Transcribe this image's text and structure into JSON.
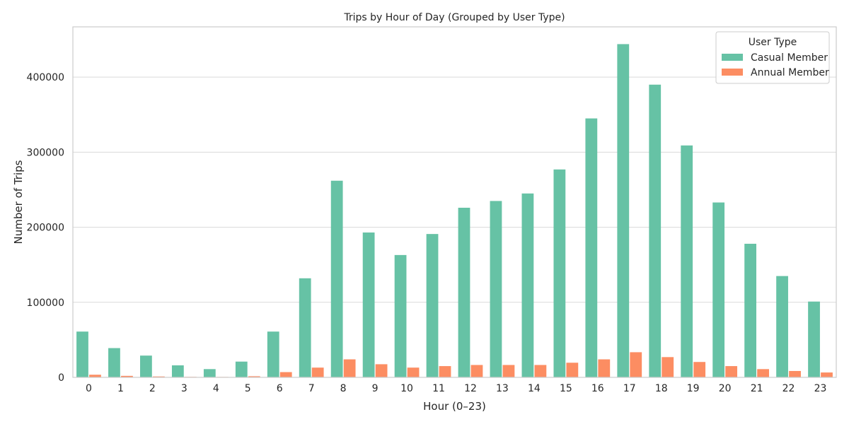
{
  "chart_data": {
    "type": "bar",
    "title": "Trips by Hour of Day (Grouped by User Type)",
    "xlabel": "Hour (0–23)",
    "ylabel": "Number of Trips",
    "categories": [
      "0",
      "1",
      "2",
      "3",
      "4",
      "5",
      "6",
      "7",
      "8",
      "9",
      "10",
      "11",
      "12",
      "13",
      "14",
      "15",
      "16",
      "17",
      "18",
      "19",
      "20",
      "21",
      "22",
      "23"
    ],
    "ylim": [
      0,
      467000
    ],
    "yticks": [
      0,
      100000,
      200000,
      300000,
      400000
    ],
    "grid": "horizontal",
    "legend": {
      "title": "User Type",
      "placement": "top-right"
    },
    "series": [
      {
        "name": "Casual Member",
        "color": "#66c2a5",
        "values": [
          61000,
          39000,
          29000,
          16000,
          11000,
          21000,
          61000,
          132000,
          262000,
          193000,
          163000,
          191000,
          226000,
          235000,
          245000,
          277000,
          345000,
          444000,
          390000,
          309000,
          233000,
          178000,
          135000,
          101000
        ]
      },
      {
        "name": "Annual Member",
        "color": "#fc8d62",
        "values": [
          3500,
          2000,
          1200,
          700,
          600,
          1500,
          7000,
          13000,
          24000,
          17500,
          13000,
          15000,
          16500,
          16500,
          16500,
          19500,
          24000,
          33500,
          27000,
          20500,
          15000,
          11000,
          8500,
          6500
        ]
      }
    ]
  }
}
